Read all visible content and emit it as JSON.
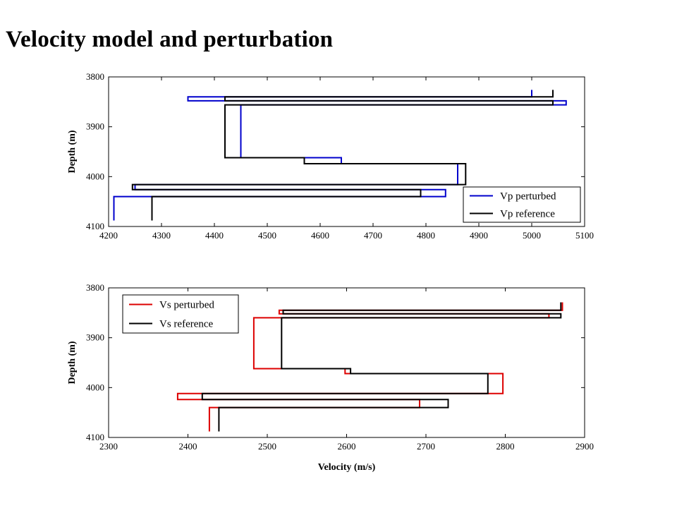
{
  "slide": {
    "title": "Velocity model and perturbation"
  },
  "chart_data": [
    {
      "type": "line",
      "step": "staircase",
      "xlabel": "",
      "ylabel": "Depth (m)",
      "xlim": [
        4200,
        5100
      ],
      "ylim": [
        3800,
        4100
      ],
      "y_reversed": true,
      "xticks": [
        4200,
        4300,
        4400,
        4500,
        4600,
        4700,
        4800,
        4900,
        5000,
        5100
      ],
      "yticks": [
        3800,
        3900,
        4000,
        4100
      ],
      "legend": "bottom-right",
      "series": [
        {
          "name": "Vp perturbed",
          "color": "#0000cc",
          "points": [
            [
              5000,
              3826
            ],
            [
              5000,
              3840
            ],
            [
              4350,
              3840
            ],
            [
              4350,
              3848
            ],
            [
              5065,
              3848
            ],
            [
              5065,
              3856
            ],
            [
              4450,
              3856
            ],
            [
              4450,
              3962
            ],
            [
              4640,
              3962
            ],
            [
              4640,
              3974
            ],
            [
              4860,
              3974
            ],
            [
              4860,
              4016
            ],
            [
              4250,
              4016
            ],
            [
              4250,
              4026
            ],
            [
              4837,
              4026
            ],
            [
              4837,
              4040
            ],
            [
              4210,
              4040
            ],
            [
              4210,
              4088
            ]
          ]
        },
        {
          "name": "Vp reference",
          "color": "#000000",
          "points": [
            [
              5040,
              3826
            ],
            [
              5040,
              3840
            ],
            [
              4420,
              3840
            ],
            [
              4420,
              3848
            ],
            [
              5040,
              3848
            ],
            [
              5040,
              3856
            ],
            [
              4420,
              3856
            ],
            [
              4420,
              3962
            ],
            [
              4570,
              3962
            ],
            [
              4570,
              3974
            ],
            [
              4875,
              3974
            ],
            [
              4875,
              4016
            ],
            [
              4245,
              4016
            ],
            [
              4245,
              4026
            ],
            [
              4790,
              4026
            ],
            [
              4790,
              4040
            ],
            [
              4282,
              4040
            ],
            [
              4282,
              4088
            ]
          ]
        }
      ]
    },
    {
      "type": "line",
      "step": "staircase",
      "xlabel": "Velocity (m/s)",
      "ylabel": "Depth (m)",
      "xlim": [
        2300,
        2900
      ],
      "ylim": [
        3800,
        4100
      ],
      "y_reversed": true,
      "xticks": [
        2300,
        2400,
        2500,
        2600,
        2700,
        2800,
        2900
      ],
      "yticks": [
        3800,
        3900,
        4000,
        4100
      ],
      "legend": "top-left",
      "series": [
        {
          "name": "Vs perturbed",
          "color": "#dd0000",
          "points": [
            [
              2872,
              3829
            ],
            [
              2872,
              3845
            ],
            [
              2515,
              3845
            ],
            [
              2515,
              3852
            ],
            [
              2855,
              3852
            ],
            [
              2855,
              3860
            ],
            [
              2483,
              3860
            ],
            [
              2483,
              3962
            ],
            [
              2598,
              3962
            ],
            [
              2598,
              3972
            ],
            [
              2797,
              3972
            ],
            [
              2797,
              4012
            ],
            [
              2387,
              4012
            ],
            [
              2387,
              4024
            ],
            [
              2692,
              4024
            ],
            [
              2692,
              4040
            ],
            [
              2427,
              4040
            ],
            [
              2427,
              4088
            ]
          ]
        },
        {
          "name": "Vs reference",
          "color": "#000000",
          "points": [
            [
              2870,
              3829
            ],
            [
              2870,
              3845
            ],
            [
              2520,
              3845
            ],
            [
              2520,
              3852
            ],
            [
              2870,
              3852
            ],
            [
              2870,
              3860
            ],
            [
              2518,
              3860
            ],
            [
              2518,
              3962
            ],
            [
              2605,
              3962
            ],
            [
              2605,
              3972
            ],
            [
              2778,
              3972
            ],
            [
              2778,
              4012
            ],
            [
              2418,
              4012
            ],
            [
              2418,
              4024
            ],
            [
              2728,
              4024
            ],
            [
              2728,
              4040
            ],
            [
              2439,
              4040
            ],
            [
              2439,
              4088
            ]
          ]
        }
      ]
    }
  ]
}
